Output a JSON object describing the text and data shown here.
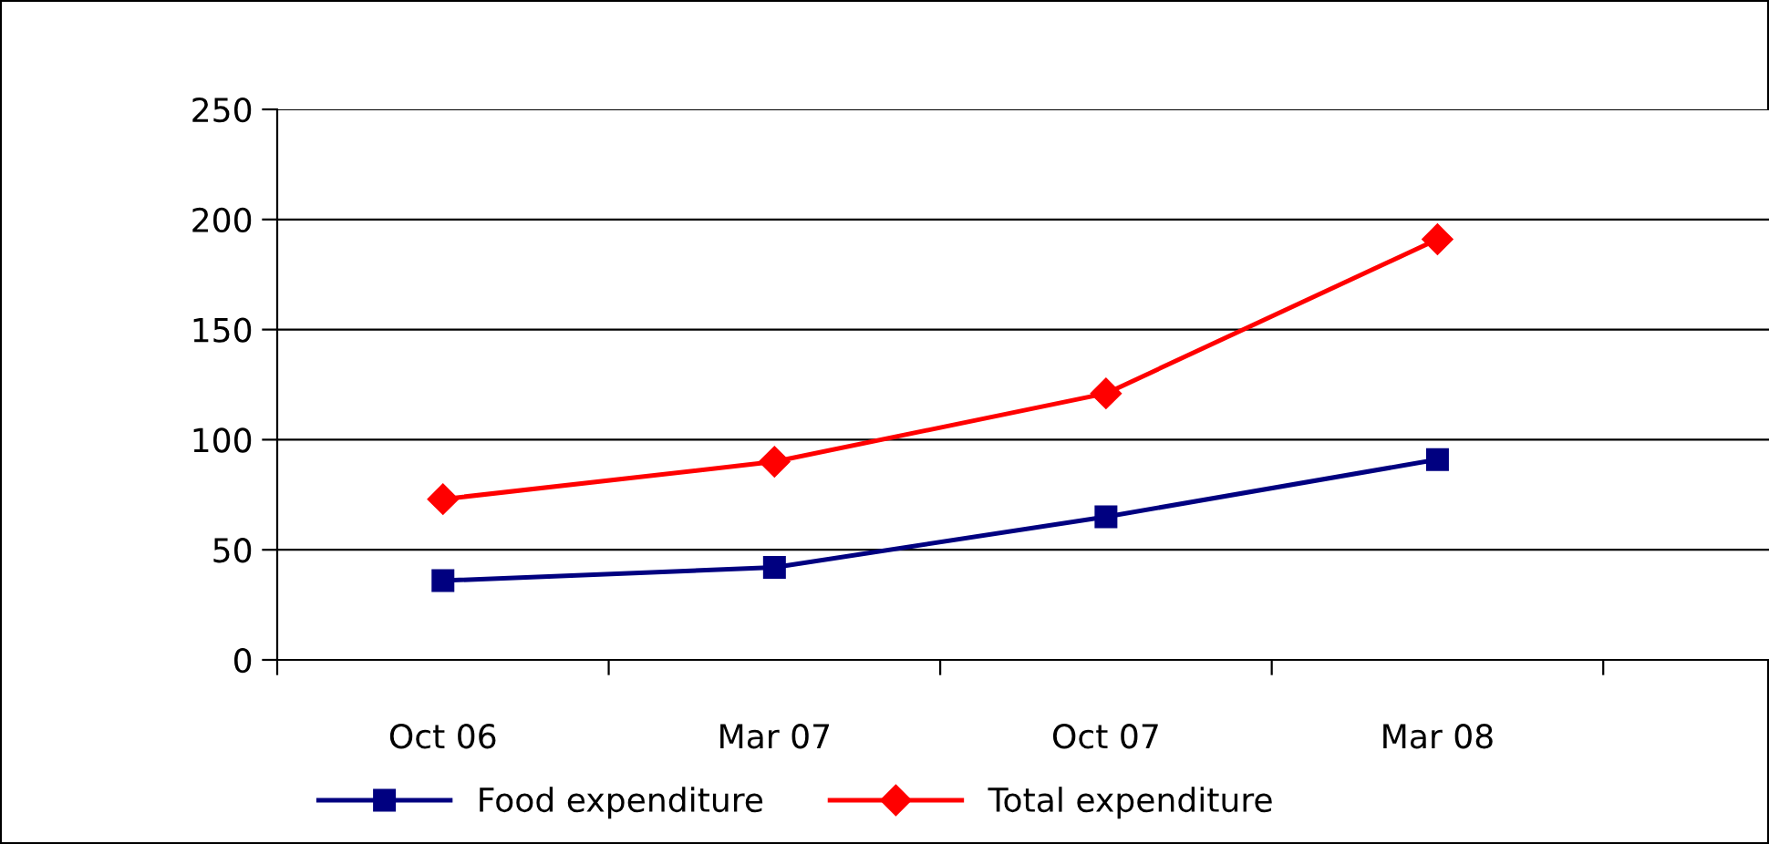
{
  "chart_data": {
    "type": "line",
    "categories": [
      "Oct 06",
      "Mar 07",
      "Oct 07",
      "Mar 08"
    ],
    "series": [
      {
        "name": "Food expenditure",
        "color": "#000080",
        "marker": "square",
        "values": [
          36,
          42,
          65,
          91
        ]
      },
      {
        "name": "Total expenditure",
        "color": "#ff0000",
        "marker": "diamond",
        "values": [
          73,
          90,
          121,
          191
        ]
      }
    ],
    "ylim": [
      0,
      250
    ],
    "yticks": [
      0,
      50,
      100,
      150,
      200,
      250
    ],
    "grid": "y",
    "legend": "bottom"
  }
}
